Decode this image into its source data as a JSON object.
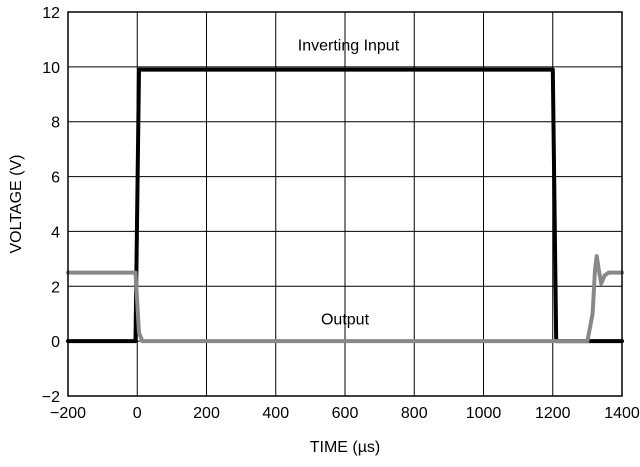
{
  "chart_data": {
    "type": "line",
    "title": "",
    "xlabel": "TIME (µs)",
    "ylabel": "VOLTAGE (V)",
    "xlim": [
      -200,
      1400
    ],
    "ylim": [
      -2,
      12
    ],
    "xticks": [
      -200,
      0,
      200,
      400,
      600,
      800,
      1000,
      1200,
      1400
    ],
    "yticks": [
      -2,
      0,
      2,
      4,
      6,
      8,
      10,
      12
    ],
    "xtick_labels": [
      "−200",
      "0",
      "200",
      "400",
      "600",
      "800",
      "1000",
      "1200",
      "1400"
    ],
    "ytick_labels": [
      "−2",
      "0",
      "2",
      "4",
      "6",
      "8",
      "10",
      "12"
    ],
    "grid": true,
    "legend": "none",
    "series": [
      {
        "name": "Inverting Input",
        "color": "#000000",
        "points": [
          [
            -200,
            0
          ],
          [
            -5,
            0
          ],
          [
            5,
            9.9
          ],
          [
            1200,
            9.9
          ],
          [
            1210,
            0
          ],
          [
            1400,
            0
          ]
        ]
      },
      {
        "name": "Output",
        "color": "#888888",
        "points": [
          [
            -200,
            2.5
          ],
          [
            -5,
            2.5
          ],
          [
            5,
            0.3
          ],
          [
            15,
            0
          ],
          [
            1300,
            0
          ],
          [
            1315,
            1.0
          ],
          [
            1322,
            2.6
          ],
          [
            1327,
            3.1
          ],
          [
            1333,
            2.6
          ],
          [
            1340,
            2.1
          ],
          [
            1350,
            2.4
          ],
          [
            1362,
            2.5
          ],
          [
            1400,
            2.5
          ]
        ]
      }
    ],
    "annotations": [
      {
        "text": "Inverting Input",
        "x": 610,
        "y": 10.6
      },
      {
        "text": "Output",
        "x": 600,
        "y": 0.6
      }
    ]
  }
}
